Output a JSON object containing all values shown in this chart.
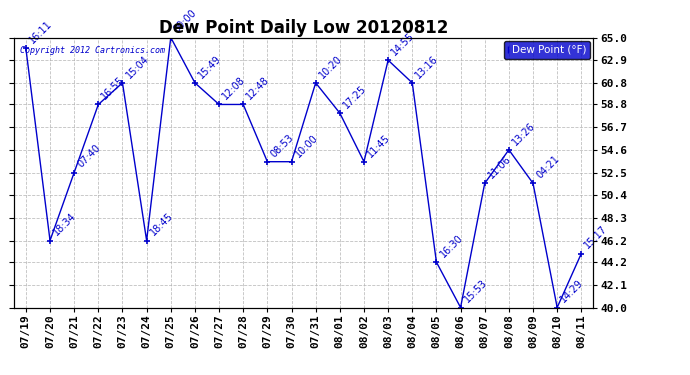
{
  "title": "Dew Point Daily Low 20120812",
  "copyright": "Copyright 2012 Cartronics.com",
  "legend_label": "Dew Point (°F)",
  "ylim": [
    40.0,
    65.0
  ],
  "yticks": [
    40.0,
    42.1,
    44.2,
    46.2,
    48.3,
    50.4,
    52.5,
    54.6,
    56.7,
    58.8,
    60.8,
    62.9,
    65.0
  ],
  "dates": [
    "07/19",
    "07/20",
    "07/21",
    "07/22",
    "07/23",
    "07/24",
    "07/25",
    "07/26",
    "07/27",
    "07/28",
    "07/29",
    "07/30",
    "07/31",
    "08/01",
    "08/02",
    "08/03",
    "08/04",
    "08/05",
    "08/06",
    "08/07",
    "08/08",
    "08/09",
    "08/10",
    "08/11"
  ],
  "values": [
    64.0,
    46.2,
    52.5,
    58.8,
    60.8,
    46.2,
    65.0,
    60.8,
    58.8,
    58.8,
    53.5,
    53.5,
    60.8,
    58.0,
    53.5,
    62.9,
    60.8,
    44.2,
    40.0,
    51.5,
    54.6,
    51.5,
    40.0,
    45.0
  ],
  "labels": [
    "16:11",
    "18:34",
    "07:40",
    "16:55",
    "15:04",
    "18:45",
    "00:00",
    "15:49",
    "12:08",
    "12:48",
    "08:53",
    "10:00",
    "10:20",
    "17:25",
    "11:45",
    "14:55",
    "13:16",
    "16:30",
    "15:53",
    "11:06",
    "13:26",
    "04:21",
    "14:29",
    "15:17"
  ],
  "line_color": "#0000cc",
  "bg_color": "#ffffff",
  "grid_color": "#b0b0b0",
  "title_fontsize": 12,
  "label_fontsize": 7,
  "tick_fontsize": 8,
  "legend_bg": "#0000cc",
  "legend_text_color": "#ffffff"
}
